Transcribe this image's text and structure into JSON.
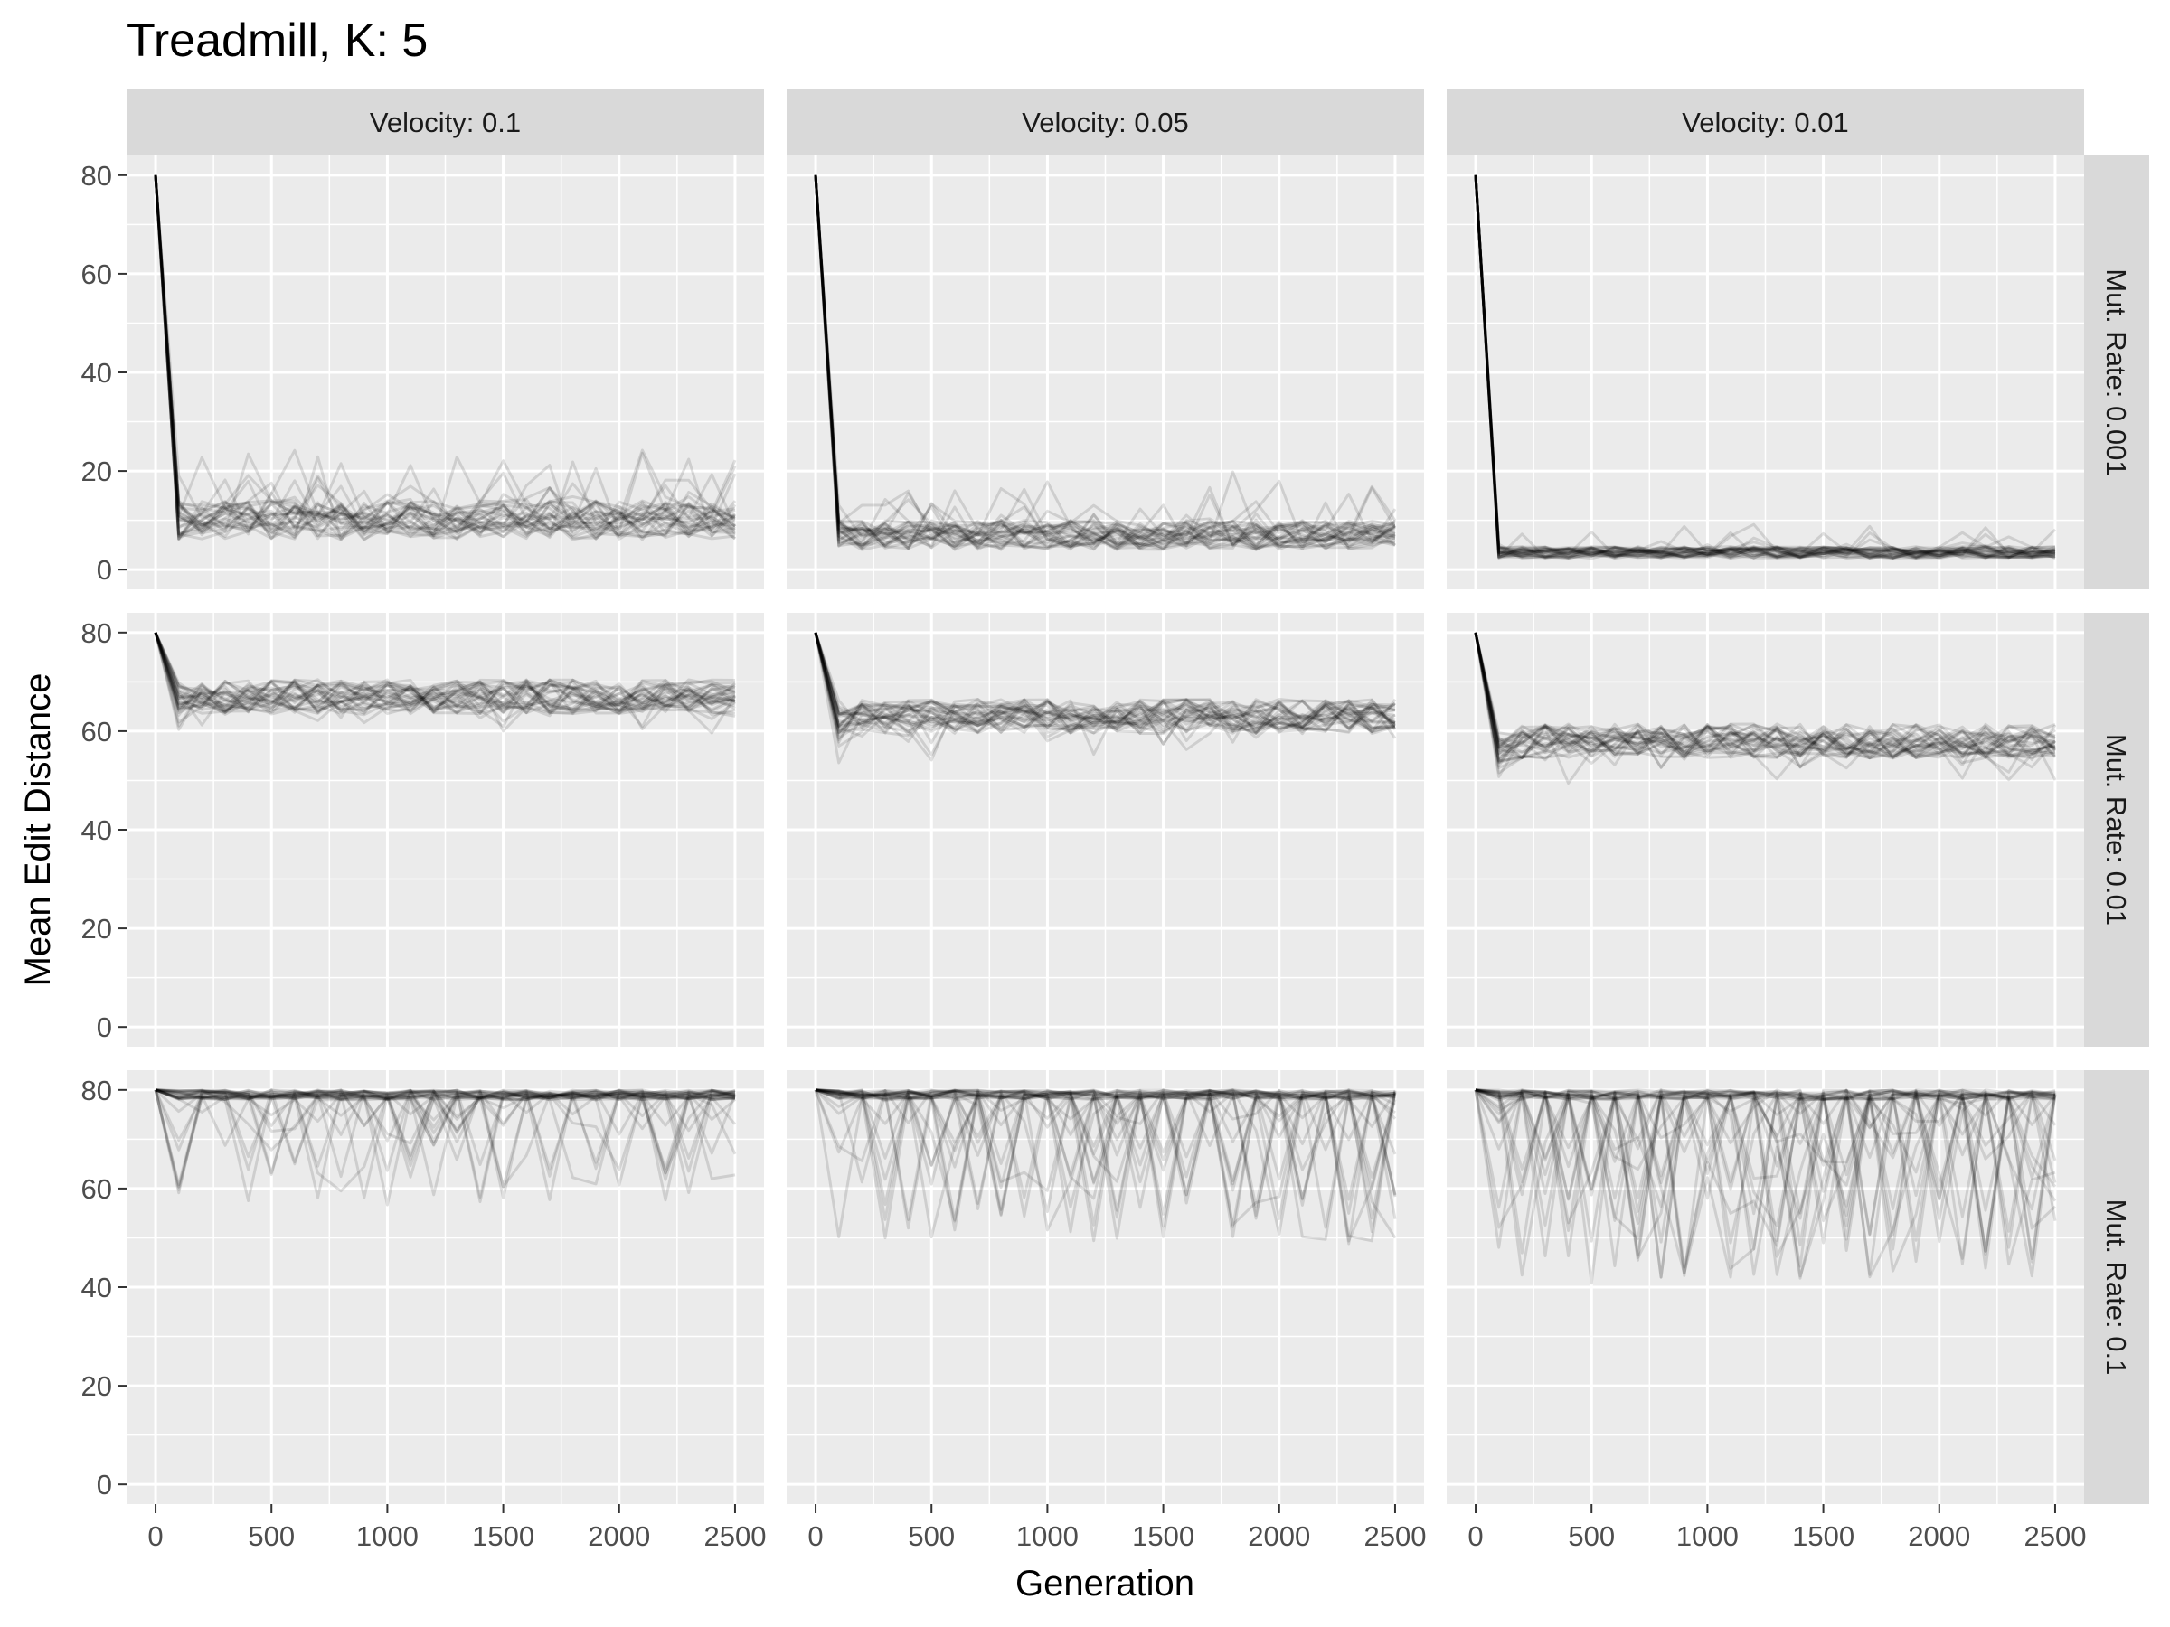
{
  "chart_data": {
    "type": "line",
    "title": "Treadmill, K: 5",
    "xlabel": "Generation",
    "ylabel": "Mean Edit Distance",
    "xlim": [
      0,
      2500
    ],
    "ylim": [
      0,
      80
    ],
    "x_ticks": [
      0,
      500,
      1000,
      1500,
      2000,
      2500
    ],
    "y_ticks": [
      0,
      20,
      40,
      60,
      80
    ],
    "grid": true,
    "facet_columns": [
      "Velocity: 0.1",
      "Velocity: 0.05",
      "Velocity: 0.01"
    ],
    "facet_rows": [
      "Mut. Rate: 0.001",
      "Mut. Rate: 0.01",
      "Mut. Rate: 0.1"
    ],
    "replicates_per_panel": 30,
    "sample_interval": 100,
    "line_color": "#000000",
    "line_opacity": 0.12,
    "panels": [
      {
        "column": 0,
        "row": 0,
        "start": 80,
        "baseline": 10,
        "spread": 4,
        "dip_chance": 0.1,
        "dip_depth": 12,
        "direction": "up"
      },
      {
        "column": 1,
        "row": 0,
        "start": 80,
        "baseline": 7,
        "spread": 3,
        "dip_chance": 0.08,
        "dip_depth": 10,
        "direction": "up"
      },
      {
        "column": 2,
        "row": 0,
        "start": 80,
        "baseline": 3.5,
        "spread": 1.2,
        "dip_chance": 0.03,
        "dip_depth": 5,
        "direction": "up"
      },
      {
        "column": 0,
        "row": 1,
        "start": 80,
        "baseline": 67,
        "spread": 3.5,
        "dip_chance": 0.05,
        "dip_depth": 6,
        "direction": "down"
      },
      {
        "column": 1,
        "row": 1,
        "start": 80,
        "baseline": 63,
        "spread": 3.5,
        "dip_chance": 0.05,
        "dip_depth": 6,
        "direction": "down"
      },
      {
        "column": 2,
        "row": 1,
        "start": 80,
        "baseline": 58,
        "spread": 3.5,
        "dip_chance": 0.05,
        "dip_depth": 6,
        "direction": "down"
      },
      {
        "column": 0,
        "row": 2,
        "start": 80,
        "baseline": 79,
        "spread": 1,
        "dip_chance": 0.14,
        "dip_depth": 22,
        "direction": "down"
      },
      {
        "column": 1,
        "row": 2,
        "start": 80,
        "baseline": 79,
        "spread": 1,
        "dip_chance": 0.2,
        "dip_depth": 30,
        "direction": "down"
      },
      {
        "column": 2,
        "row": 2,
        "start": 80,
        "baseline": 79,
        "spread": 1,
        "dip_chance": 0.26,
        "dip_depth": 38,
        "direction": "down"
      }
    ]
  }
}
